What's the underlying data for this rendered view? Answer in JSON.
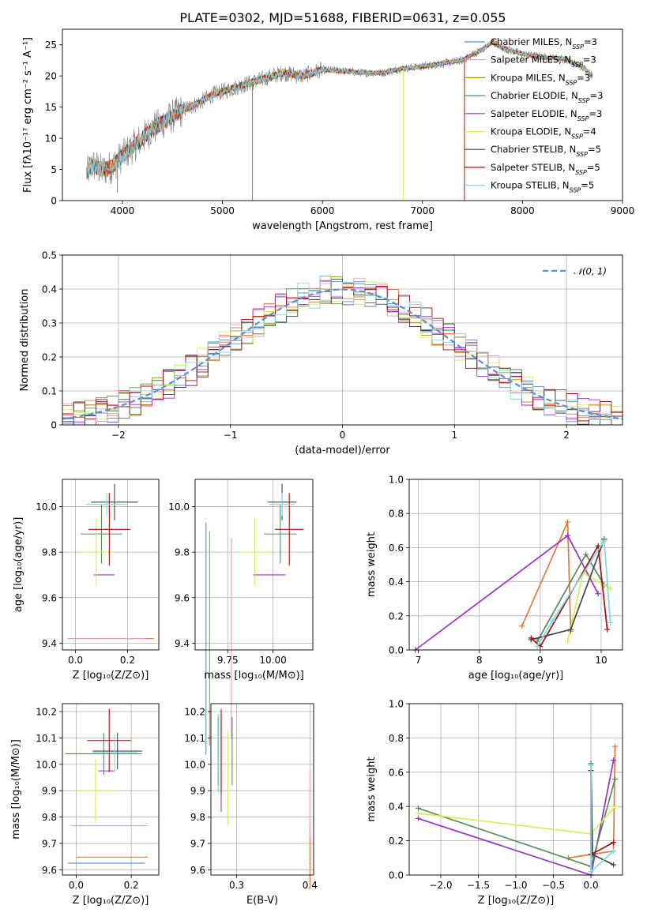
{
  "title": "PLATE=0302, MJD=51688, FIBERID=0631, z=0.055",
  "colors": {
    "blue": "#5b8bd9",
    "orange": "#e07b39",
    "pink": "#e89ac7",
    "olive": "#b8860b",
    "green": "#5a8a5a",
    "purple": "#9932cc",
    "yellow": "#d4ed58",
    "black": "#444444",
    "red": "#a50f0f",
    "cyan": "#7fd6e6",
    "gray": "#808080"
  },
  "legend_spectrum": [
    {
      "text": "Chabrier MILES, N",
      "sub": "SSP",
      "val": "=3",
      "color": "#5b8bd9"
    },
    {
      "text": "Salpeter MILES, N",
      "sub": "SSP",
      "val": "=3",
      "color": "#e89ac7"
    },
    {
      "text": "Kroupa MILES, N",
      "sub": "SSP",
      "val": "=3",
      "color": "#b8860b"
    },
    {
      "text": "Chabrier ELODIE, N",
      "sub": "SSP",
      "val": "=3",
      "color": "#5a8a5a"
    },
    {
      "text": "Salpeter ELODIE, N",
      "sub": "SSP",
      "val": "=3",
      "color": "#9932cc"
    },
    {
      "text": "Kroupa ELODIE, N",
      "sub": "SSP",
      "val": "=4",
      "color": "#d4ed58"
    },
    {
      "text": "Chabrier STELIB, N",
      "sub": "SSP",
      "val": "=5",
      "color": "#444444"
    },
    {
      "text": "Salpeter STELIB, N",
      "sub": "SSP",
      "val": "=5",
      "color": "#a50f0f"
    },
    {
      "text": "Kroupa STELIB, N",
      "sub": "SSP",
      "val": "=5",
      "color": "#7fd6e6"
    }
  ],
  "legend_hist": {
    "label": "𝒩(0, 1)"
  },
  "chart_data": [
    {
      "id": "spectrum",
      "type": "line",
      "xlabel": "wavelength [Angstrom, rest frame]",
      "ylabel": "Flux [fλ10⁻¹⁷ erg cm⁻² s⁻¹ A⁻¹]",
      "xlim": [
        3400,
        9000
      ],
      "ylim": [
        0,
        27.5
      ],
      "xticks": [
        4000,
        5000,
        6000,
        7000,
        8000,
        9000
      ],
      "yticks": [
        0,
        5,
        10,
        15,
        20,
        25
      ],
      "model_continuum": {
        "x": [
          3650,
          3700,
          3800,
          3900,
          4000,
          4100,
          4200,
          4300,
          4400,
          4500,
          4600,
          4700,
          4800,
          4900,
          5000,
          5200,
          5400,
          5600,
          5800,
          6000,
          6200,
          6400,
          6600,
          6800,
          7000,
          7200,
          7400,
          7500,
          7600,
          7700,
          7800,
          8000,
          8200,
          8400,
          8600,
          8700
        ],
        "y": [
          4.5,
          5.8,
          4.8,
          5.5,
          7.2,
          8.5,
          10.0,
          11.5,
          12.5,
          13.5,
          14.5,
          15.2,
          16.0,
          17.0,
          17.5,
          18.5,
          19.5,
          20.5,
          20.0,
          21.0,
          20.8,
          20.5,
          20.5,
          21.2,
          21.5,
          22.0,
          22.5,
          23.5,
          24.2,
          25.5,
          24.5,
          23.5,
          23.0,
          22.8,
          21.5,
          20.0
        ]
      },
      "features": [
        {
          "x": 3950,
          "y": 1.2
        },
        {
          "x": 5300,
          "y": 0
        },
        {
          "x": 6810,
          "y": 0
        },
        {
          "x": 7420,
          "y": 0
        }
      ]
    },
    {
      "id": "residual_hist",
      "type": "area",
      "xlabel": "(data-model)/error",
      "ylabel": "Normed distribution",
      "xlim": [
        -2.5,
        2.5
      ],
      "ylim": [
        0,
        0.5
      ],
      "xticks": [
        -2,
        -1,
        0,
        1,
        2
      ],
      "yticks": [
        0.0,
        0.1,
        0.2,
        0.3,
        0.4,
        0.5
      ],
      "bin_width": 0.1,
      "gaussian": {
        "mu": 0,
        "sigma": 1
      }
    },
    {
      "id": "age_vs_Z",
      "type": "scatter",
      "xlabel": "Z [log₁₀(Z/Z⊙)]",
      "ylabel": "age  [log₁₀(age/yr)]",
      "xlim": [
        -0.05,
        0.32
      ],
      "ylim": [
        9.37,
        10.12
      ],
      "xticks": [
        0.0,
        0.2
      ],
      "yticks": [
        9.4,
        9.6,
        9.8,
        10.0
      ],
      "points": [
        {
          "x": 0.12,
          "y": 9.42,
          "xerr": 0.15,
          "yerr": 0.0,
          "color": "#5b8bd9"
        },
        {
          "x": 0.16,
          "y": 9.42,
          "xerr": 0.14,
          "yerr": 0.0,
          "color": "#e07b39"
        },
        {
          "x": 0.12,
          "y": 9.42,
          "xerr": 0.15,
          "yerr": 0.0,
          "color": "#e89ac7"
        },
        {
          "x": 0.1,
          "y": 9.88,
          "xerr": 0.08,
          "yerr": 0.13,
          "color": "#5a8a5a"
        },
        {
          "x": 0.11,
          "y": 9.7,
          "xerr": 0.04,
          "yerr": 0.0,
          "color": "#9932cc"
        },
        {
          "x": 0.08,
          "y": 9.8,
          "xerr": 0.07,
          "yerr": 0.15,
          "color": "#d4ed58"
        },
        {
          "x": 0.15,
          "y": 10.02,
          "xerr": 0.09,
          "yerr": 0.08,
          "color": "#444444"
        },
        {
          "x": 0.13,
          "y": 9.9,
          "xerr": 0.08,
          "yerr": 0.16,
          "color": "#a50f0f"
        },
        {
          "x": 0.12,
          "y": 10.01,
          "xerr": 0.08,
          "yerr": 0.05,
          "color": "#7fd6e6"
        }
      ]
    },
    {
      "id": "age_vs_mass",
      "type": "scatter",
      "xlabel": "mass [log₁₀(M/M⊙)]",
      "ylabel": "",
      "xlim": [
        9.57,
        10.22
      ],
      "ylim": [
        9.37,
        10.12
      ],
      "xticks": [
        9.75,
        10.0
      ],
      "yticks": [
        9.4,
        9.6,
        9.8,
        10.0
      ],
      "points": [
        {
          "x": 9.63,
          "y": 9.42,
          "xerr": 0.0,
          "yerr": 0.51,
          "color": "#5b8bd9"
        },
        {
          "x": 9.65,
          "y": 9.42,
          "xerr": 0.0,
          "yerr": 0.47,
          "color": "#e07b39"
        },
        {
          "x": 9.77,
          "y": 9.42,
          "xerr": 0.0,
          "yerr": 0.44,
          "color": "#e89ac7"
        },
        {
          "x": 10.04,
          "y": 9.88,
          "xerr": 0.09,
          "yerr": 0.13,
          "color": "#5a8a5a"
        },
        {
          "x": 9.98,
          "y": 9.7,
          "xerr": 0.09,
          "yerr": 0.0,
          "color": "#9932cc"
        },
        {
          "x": 9.9,
          "y": 9.8,
          "xerr": 0.08,
          "yerr": 0.15,
          "color": "#d4ed58"
        },
        {
          "x": 10.05,
          "y": 10.02,
          "xerr": 0.08,
          "yerr": 0.08,
          "color": "#444444"
        },
        {
          "x": 10.09,
          "y": 9.9,
          "xerr": 0.08,
          "yerr": 0.16,
          "color": "#a50f0f"
        },
        {
          "x": 10.05,
          "y": 10.01,
          "xerr": 0.07,
          "yerr": 0.05,
          "color": "#7fd6e6"
        }
      ]
    },
    {
      "id": "weight_vs_age",
      "type": "line",
      "xlabel": "age  [log₁₀(age/yr)]",
      "ylabel": "mass weight",
      "xlim": [
        6.85,
        10.35
      ],
      "ylim": [
        0,
        1.0
      ],
      "xticks": [
        7,
        8,
        9,
        10
      ],
      "yticks": [
        0.0,
        0.2,
        0.4,
        0.6,
        0.8,
        1.0
      ],
      "series": [
        {
          "color": "#e07b39",
          "x": [
            8.7,
            9.45,
            9.5
          ],
          "y": [
            0.14,
            0.75,
            0.11
          ]
        },
        {
          "color": "#9932cc",
          "x": [
            6.95,
            9.45,
            9.95
          ],
          "y": [
            0.0,
            0.67,
            0.33
          ]
        },
        {
          "color": "#5a8a5a",
          "x": [
            8.95,
            9.75,
            10.05
          ],
          "y": [
            0.05,
            0.56,
            0.38
          ]
        },
        {
          "color": "#d4ed58",
          "x": [
            9.45,
            9.7,
            10.15
          ],
          "y": [
            0.05,
            0.45,
            0.36
          ]
        },
        {
          "color": "#444444",
          "x": [
            8.85,
            9.5,
            10.05
          ],
          "y": [
            0.06,
            0.12,
            0.65
          ]
        },
        {
          "color": "#a50f0f",
          "x": [
            8.85,
            9.0,
            9.95,
            10.1
          ],
          "y": [
            0.07,
            0.02,
            0.61,
            0.12
          ]
        },
        {
          "color": "#7fd6e6",
          "x": [
            8.95,
            9.2,
            10.05,
            10.15
          ],
          "y": [
            0.02,
            0.17,
            0.64,
            0.16
          ]
        }
      ]
    },
    {
      "id": "mass_vs_Z",
      "type": "scatter",
      "xlabel": "Z [log₁₀(Z/Z⊙)]",
      "ylabel": "mass [log₁₀(M/M⊙)]",
      "xlim": [
        -0.05,
        0.3
      ],
      "ylim": [
        9.58,
        10.23
      ],
      "xticks": [
        0.0,
        0.2
      ],
      "yticks": [
        9.6,
        9.7,
        9.8,
        9.9,
        10.0,
        10.1,
        10.2
      ],
      "points": [
        {
          "x": 0.11,
          "y": 9.625,
          "xerr": 0.14,
          "yerr": 0.0,
          "color": "#5b8bd9"
        },
        {
          "x": 0.13,
          "y": 9.648,
          "xerr": 0.13,
          "yerr": 0.0,
          "color": "#e07b39"
        },
        {
          "x": 0.12,
          "y": 9.767,
          "xerr": 0.14,
          "yerr": 0.0,
          "color": "#e89ac7"
        },
        {
          "x": 0.1,
          "y": 10.04,
          "xerr": 0.14,
          "yerr": 0.08,
          "color": "#5a8a5a"
        },
        {
          "x": 0.11,
          "y": 9.975,
          "xerr": 0.03,
          "yerr": 0.0,
          "color": "#9932cc"
        },
        {
          "x": 0.07,
          "y": 9.9,
          "xerr": 0.07,
          "yerr": 0.12,
          "color": "#d4ed58"
        },
        {
          "x": 0.15,
          "y": 10.05,
          "xerr": 0.09,
          "yerr": 0.07,
          "color": "#444444"
        },
        {
          "x": 0.12,
          "y": 10.09,
          "xerr": 0.08,
          "yerr": 0.12,
          "color": "#a50f0f"
        },
        {
          "x": 0.14,
          "y": 10.045,
          "xerr": 0.08,
          "yerr": 0.07,
          "color": "#7fd6e6"
        }
      ]
    },
    {
      "id": "mass_vs_EBV",
      "type": "scatter",
      "xlabel": "E(B-V)",
      "ylabel": "",
      "xlim": [
        0.265,
        0.405
      ],
      "ylim": [
        9.58,
        10.23
      ],
      "xticks": [
        0.3,
        0.4
      ],
      "yticks": [
        9.6,
        9.7,
        9.8,
        9.9,
        10.0,
        10.1,
        10.2
      ],
      "points": [
        {
          "x": 0.4,
          "y": 9.625,
          "xerr": 0.0,
          "yerr": 0.0,
          "color": "#5b8bd9"
        },
        {
          "x": 0.4,
          "y": 9.65,
          "xerr": 0.0,
          "yerr": 0.12,
          "color": "#e07b39"
        },
        {
          "x": 0.4,
          "y": 9.85,
          "xerr": 0.0,
          "yerr": 0.13,
          "color": "#e89ac7"
        },
        {
          "x": 0.294,
          "y": 10.05,
          "xerr": 0.0,
          "yerr": 0.13,
          "color": "#5a8a5a"
        },
        {
          "x": 0.279,
          "y": 10.0,
          "xerr": 0.0,
          "yerr": 0.18,
          "color": "#9932cc"
        },
        {
          "x": 0.288,
          "y": 9.95,
          "xerr": 0.0,
          "yerr": 0.18,
          "color": "#d4ed58"
        },
        {
          "x": 0.275,
          "y": 10.05,
          "xerr": 0.0,
          "yerr": 0.13,
          "color": "#444444"
        },
        {
          "x": 0.279,
          "y": 10.05,
          "xerr": 0.0,
          "yerr": 0.16,
          "color": "#a50f0f"
        },
        {
          "x": 0.275,
          "y": 10.04,
          "xerr": 0.0,
          "yerr": 0.15,
          "color": "#7fd6e6"
        }
      ]
    },
    {
      "id": "weight_vs_Z",
      "type": "line",
      "xlabel": "Z [log₁₀(Z/Z⊙)]",
      "ylabel": "mass weight",
      "xlim": [
        -2.42,
        0.42
      ],
      "ylim": [
        0,
        1.0
      ],
      "xticks": [
        -2.0,
        -1.5,
        -1.0,
        -0.5,
        0.0
      ],
      "yticks": [
        0.0,
        0.2,
        0.4,
        0.6,
        0.8,
        1.0
      ],
      "series": [
        {
          "color": "#e07b39",
          "x": [
            -0.3,
            0.0,
            0.3,
            0.32
          ],
          "y": [
            0.1,
            0.12,
            0.14,
            0.75
          ]
        },
        {
          "color": "#9932cc",
          "x": [
            -2.3,
            0.0,
            0.3
          ],
          "y": [
            0.33,
            0.0,
            0.67
          ]
        },
        {
          "color": "#5a8a5a",
          "x": [
            -2.3,
            0.0,
            0.32
          ],
          "y": [
            0.39,
            0.05,
            0.56
          ]
        },
        {
          "color": "#d4ed58",
          "x": [
            -2.3,
            0.0,
            0.32
          ],
          "y": [
            0.36,
            0.24,
            0.4
          ]
        },
        {
          "color": "#444444",
          "x": [
            0.0,
            0.02,
            0.3
          ],
          "y": [
            0.65,
            0.12,
            0.06
          ]
        },
        {
          "color": "#a50f0f",
          "x": [
            0.0,
            0.0,
            0.3
          ],
          "y": [
            0.61,
            0.12,
            0.19
          ]
        },
        {
          "color": "#7fd6e6",
          "x": [
            0.0,
            0.0,
            0.3
          ],
          "y": [
            0.64,
            0.02,
            0.14
          ]
        }
      ]
    }
  ]
}
